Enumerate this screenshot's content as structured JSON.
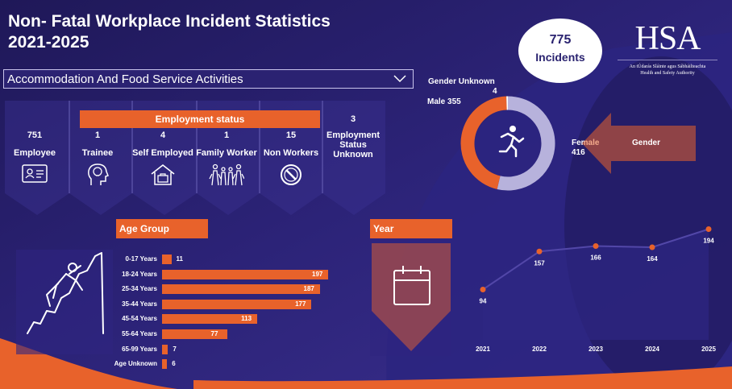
{
  "header": {
    "title_line1": "Non- Fatal Workplace Incident Statistics",
    "title_line2": "2021-2025",
    "incidents_count": "775",
    "incidents_label": "Incidents"
  },
  "logo": {
    "text": "HSA",
    "subtitle_line1": "An tÚdarás Sláinte agus Sábháilteachta",
    "subtitle_line2": "Health and Safety Authority"
  },
  "filter": {
    "selected": "Accommodation And Food Service Activities"
  },
  "employment": {
    "header": "Employment status",
    "items": [
      {
        "count": "751",
        "label": "Employee",
        "icon": "id-badge-icon"
      },
      {
        "count": "1",
        "label": "Trainee",
        "icon": "head-lightbulb-icon"
      },
      {
        "count": "4",
        "label": "Self Employed",
        "icon": "house-briefcase-icon"
      },
      {
        "count": "1",
        "label": "Family Worker",
        "icon": "family-icon"
      },
      {
        "count": "15",
        "label": "Non Workers",
        "icon": "prohibited-icon"
      },
      {
        "count": "3",
        "label": "Employment Status Unknown",
        "icon": ""
      }
    ]
  },
  "gender": {
    "label": "Gender",
    "male_label": "Male 355",
    "female_label": "Female",
    "female_value": "416",
    "unknown_label": "Gender Unknown",
    "unknown_value": "4"
  },
  "age_group": {
    "header": "Age Group"
  },
  "year": {
    "header": "Year"
  },
  "colors": {
    "accent": "#e8622b",
    "background": "#221a5c",
    "donut_female": "#b7b2dc",
    "line": "#4a3fa0"
  },
  "chart_data": [
    {
      "type": "bar",
      "orientation": "horizontal",
      "title": "Age Group",
      "categories": [
        "0-17 Years",
        "18-24 Years",
        "25-34 Years",
        "35-44 Years",
        "45-54 Years",
        "55-64 Years",
        "65-99 Years",
        "Age Unknown"
      ],
      "values": [
        11,
        197,
        187,
        177,
        113,
        77,
        7,
        6
      ]
    },
    {
      "type": "line",
      "title": "Year",
      "x": [
        "2021",
        "2022",
        "2023",
        "2024",
        "2025"
      ],
      "values": [
        94,
        157,
        166,
        164,
        194
      ]
    },
    {
      "type": "pie",
      "variant": "donut",
      "title": "Gender",
      "categories": [
        "Female",
        "Male",
        "Gender Unknown"
      ],
      "values": [
        416,
        355,
        4
      ]
    }
  ]
}
